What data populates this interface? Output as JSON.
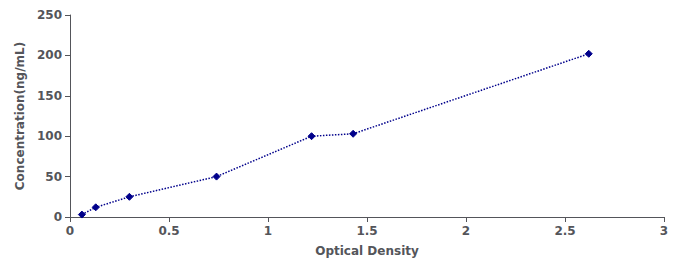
{
  "chart_data": {
    "type": "line",
    "x": [
      0.06,
      0.13,
      0.3,
      0.74,
      1.22,
      1.43,
      2.62
    ],
    "values": [
      3,
      12,
      25,
      50,
      100,
      103,
      202
    ],
    "color": "#00008B",
    "marker": "diamond",
    "line_style": "dotted",
    "xlabel": "Optical Density",
    "ylabel": "Concentration(ng/mL)",
    "xlim": [
      0,
      3
    ],
    "ylim": [
      0,
      250
    ],
    "xticks": [
      0,
      0.5,
      1,
      1.5,
      2,
      2.5,
      3
    ],
    "yticks": [
      0,
      50,
      100,
      150,
      200,
      250
    ],
    "grid": false
  }
}
